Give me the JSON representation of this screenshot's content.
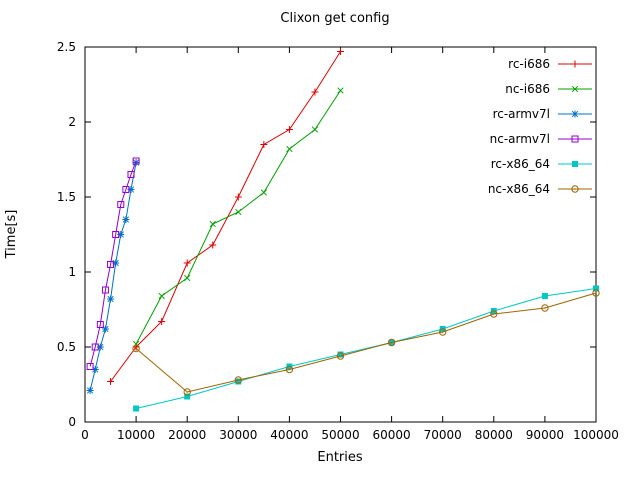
{
  "title": "Clixon get config",
  "chart_data": {
    "type": "line",
    "title": "Clixon get config",
    "xlabel": "Entries",
    "ylabel": "Time[s]",
    "xlim": [
      0,
      100000
    ],
    "ylim": [
      0,
      2.5
    ],
    "xticks": [
      0,
      10000,
      20000,
      30000,
      40000,
      50000,
      60000,
      70000,
      80000,
      90000,
      100000
    ],
    "xtick_labels": [
      "0",
      "10000",
      "20000",
      "30000",
      "40000",
      "50000",
      "60000",
      "70000",
      "80000",
      "90000",
      "100000"
    ],
    "yticks": [
      0,
      0.5,
      1,
      1.5,
      2,
      2.5
    ],
    "ytick_labels": [
      "0",
      "0.5",
      "1",
      "1.5",
      "2",
      "2.5"
    ],
    "grid": false,
    "background": "#ffffff",
    "border_color": "#000000",
    "legend_position": "top-right-inside",
    "series": [
      {
        "name": "rc-i686",
        "color": "#e00000",
        "marker": "plus",
        "x": [
          5000,
          10000,
          15000,
          20000,
          25000,
          30000,
          35000,
          40000,
          45000,
          50000
        ],
        "y": [
          0.27,
          0.5,
          0.67,
          1.06,
          1.18,
          1.5,
          1.85,
          1.95,
          2.2,
          2.47
        ]
      },
      {
        "name": "nc-i686",
        "color": "#00a000",
        "marker": "cross",
        "x": [
          10000,
          15000,
          20000,
          25000,
          30000,
          35000,
          40000,
          45000,
          50000
        ],
        "y": [
          0.52,
          0.84,
          0.96,
          1.32,
          1.4,
          1.53,
          1.82,
          1.95,
          2.21
        ]
      },
      {
        "name": "rc-armv7l",
        "color": "#0070c8",
        "marker": "asterisk",
        "x": [
          1000,
          2000,
          3000,
          4000,
          5000,
          6000,
          7000,
          8000,
          9000,
          10000
        ],
        "y": [
          0.21,
          0.35,
          0.5,
          0.62,
          0.82,
          1.06,
          1.25,
          1.35,
          1.55,
          1.73
        ]
      },
      {
        "name": "nc-armv7l",
        "color": "#9400d3",
        "marker": "square-open",
        "x": [
          1000,
          2000,
          3000,
          4000,
          5000,
          6000,
          7000,
          8000,
          9000,
          10000
        ],
        "y": [
          0.37,
          0.5,
          0.65,
          0.88,
          1.05,
          1.25,
          1.45,
          1.55,
          1.65,
          1.74
        ]
      },
      {
        "name": "rc-x86_64",
        "color": "#00c8c8",
        "marker": "square-filled",
        "x": [
          10000,
          20000,
          30000,
          40000,
          50000,
          60000,
          70000,
          80000,
          90000,
          100000
        ],
        "y": [
          0.09,
          0.17,
          0.27,
          0.37,
          0.45,
          0.53,
          0.62,
          0.74,
          0.84,
          0.89
        ]
      },
      {
        "name": "nc-x86_64",
        "color": "#a06400",
        "marker": "circle-open",
        "x": [
          10000,
          20000,
          30000,
          40000,
          50000,
          60000,
          70000,
          80000,
          90000,
          100000
        ],
        "y": [
          0.49,
          0.2,
          0.28,
          0.35,
          0.44,
          0.53,
          0.6,
          0.72,
          0.76,
          0.86
        ]
      }
    ]
  }
}
